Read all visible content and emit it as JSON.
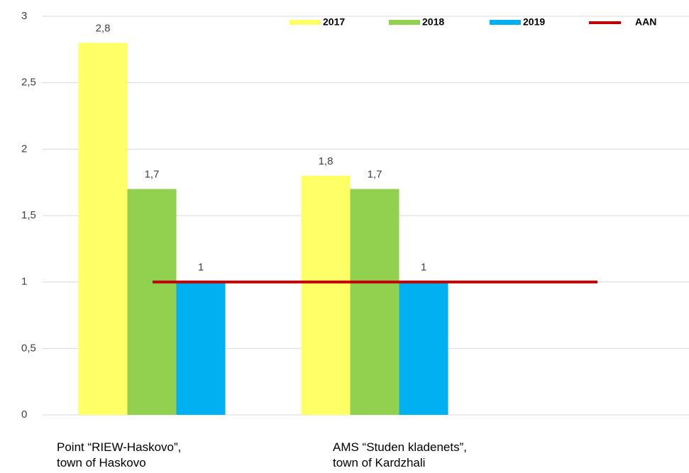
{
  "chart_data": {
    "type": "bar",
    "categories": [
      "Point “RIEW-Haskovo”,\ntown of Haskovo",
      "AMS “Studen kladenets”,\ntown of Kardzhali"
    ],
    "series": [
      {
        "name": "2017",
        "color": "#ffff66",
        "values": [
          2.8,
          1.8
        ],
        "value_labels": [
          "2,8",
          "1,8"
        ]
      },
      {
        "name": "2018",
        "color": "#92d050",
        "values": [
          1.7,
          1.7
        ],
        "value_labels": [
          "1,7",
          "1,7"
        ]
      },
      {
        "name": "2019",
        "color": "#00b0f0",
        "values": [
          1,
          1
        ],
        "value_labels": [
          "1",
          "1"
        ]
      }
    ],
    "reference_line": {
      "name": "AAN",
      "color": "#c00000",
      "value": 1
    },
    "ylim": [
      0,
      3
    ],
    "yticks": [
      0,
      {
        "value": 0.5,
        "label": "0,5"
      },
      1,
      {
        "value": 1.5,
        "label": "1,5"
      },
      2,
      {
        "value": 2.5,
        "label": "2,5"
      },
      3
    ],
    "grid": true,
    "legend": "top"
  }
}
